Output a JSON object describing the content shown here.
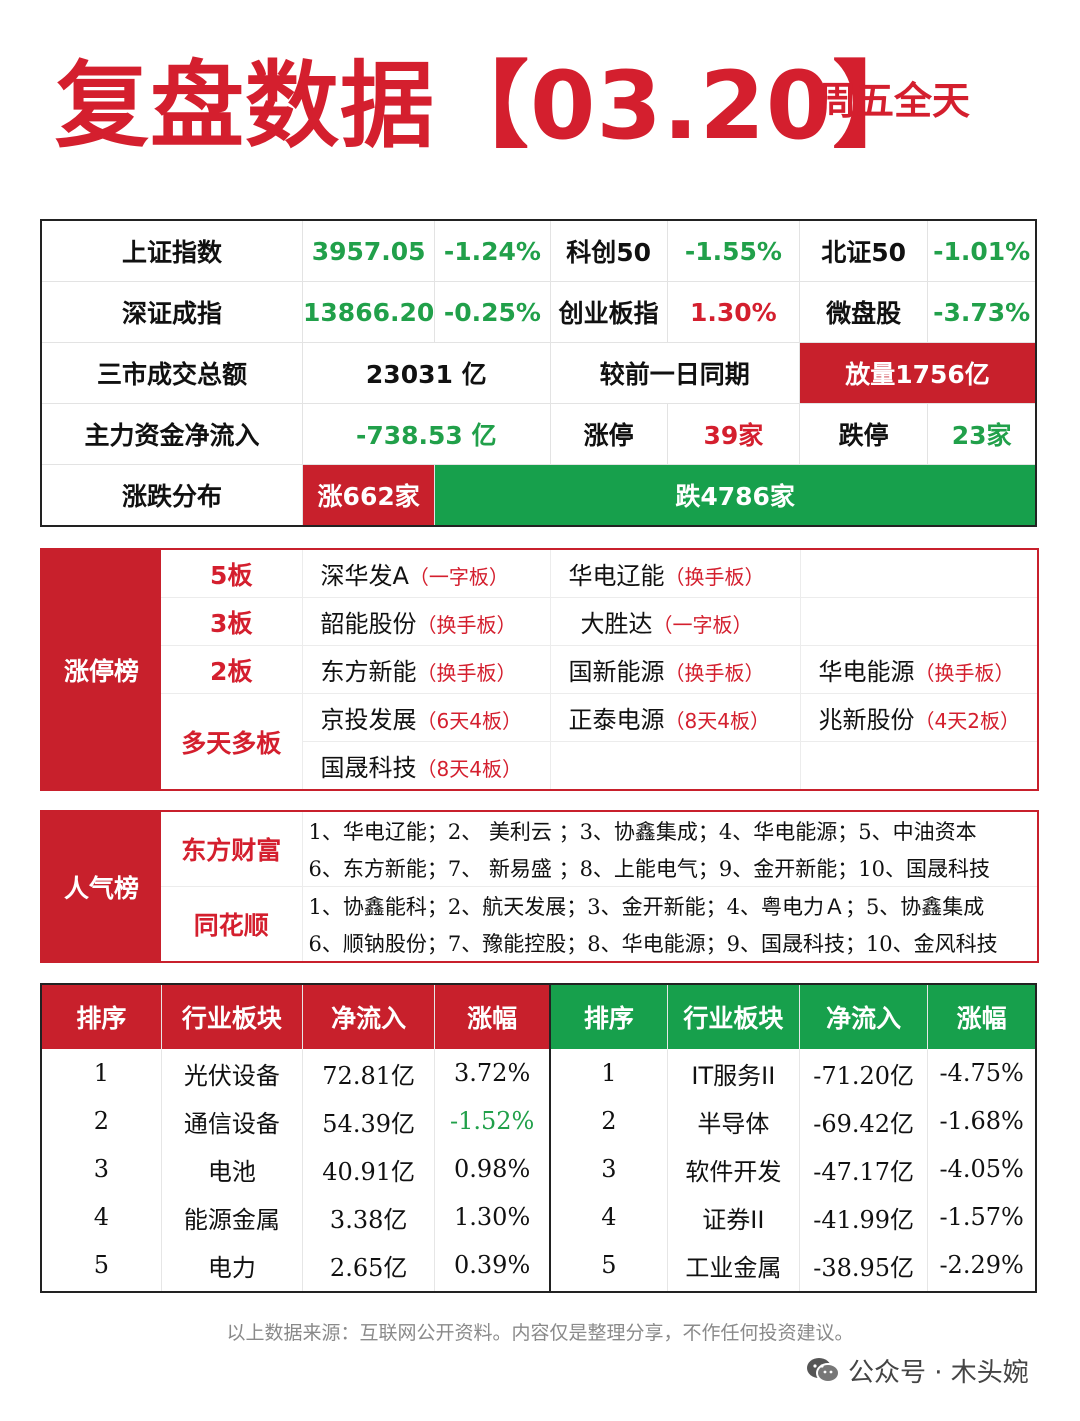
{
  "header": {
    "title": "复盘数据【03.20】",
    "subtitle": "周五全天"
  },
  "market": {
    "row1": [
      {
        "label": "上证指数",
        "value": "3957.05",
        "change": "-1.24%"
      },
      {
        "label": "科创50",
        "change": "-1.55%"
      },
      {
        "label": "北证50",
        "change": "-1.01%"
      }
    ],
    "row2": [
      {
        "label": "深证成指",
        "value": "13866.20",
        "change": "-0.25%"
      },
      {
        "label": "创业板指",
        "change": "1.30%"
      },
      {
        "label": "微盘股",
        "change": "-3.73%"
      }
    ],
    "turnover_label": "三市成交总额",
    "turnover_value": "23031 亿",
    "compare_label": "较前一日同期",
    "compare_value": "放量1756亿",
    "netflow_label": "主力资金净流入",
    "netflow_value": "-738.53 亿",
    "limit_up_label": "涨停",
    "limit_up_value": "39家",
    "limit_down_label": "跌停",
    "limit_down_value": "23家",
    "dist_label": "涨跌分布",
    "dist_up": "涨662家",
    "dist_down": "跌4786家"
  },
  "limit_board": {
    "section": "涨停榜",
    "boards": [
      "5板",
      "3板",
      "2板",
      "多天多板"
    ],
    "rows": [
      [
        {
          "name": "深华发A",
          "tag": "（一字板）"
        },
        {
          "name": "华电辽能",
          "tag": "（换手板）"
        },
        null
      ],
      [
        {
          "name": "韶能股份",
          "tag": "（换手板）"
        },
        {
          "name": "大胜达",
          "tag": "（一字板）"
        },
        null
      ],
      [
        {
          "name": "东方新能",
          "tag": "（换手板）"
        },
        {
          "name": "国新能源",
          "tag": "（换手板）"
        },
        {
          "name": "华电能源",
          "tag": "（换手板）"
        }
      ],
      [
        {
          "name": "京投发展",
          "tag": "（6天4板）"
        },
        {
          "name": "正泰电源",
          "tag": "（8天4板）"
        },
        {
          "name": "兆新股份",
          "tag": "（4天2板）"
        }
      ],
      [
        {
          "name": "国晟科技",
          "tag": "（8天4板）"
        },
        null,
        null
      ]
    ]
  },
  "popularity": {
    "section": "人气榜",
    "sources": [
      "东方财富",
      "同花顺"
    ],
    "lines": [
      "1、华电辽能；2、 美利云 ；3、协鑫集成；4、华电能源；5、中油资本",
      "6、东方新能；7、 新易盛 ；8、上能电气；9、金开新能；10、国晟科技",
      "1、协鑫能科；2、航天发展；3、金开新能；4、粤电力Ａ；5、协鑫集成",
      "6、顺钠股份；7、豫能控股；8、华电能源；9、国晟科技；10、金风科技"
    ]
  },
  "flows": {
    "headers": [
      "排序",
      "行业板块",
      "净流入",
      "涨幅"
    ],
    "inflow": [
      {
        "rank": "1",
        "sector": "光伏设备",
        "net": "72.81亿",
        "chg": "3.72%",
        "chg_color": "#111111"
      },
      {
        "rank": "2",
        "sector": "通信设备",
        "net": "54.39亿",
        "chg": "-1.52%",
        "chg_color": "#21a04a"
      },
      {
        "rank": "3",
        "sector": "电池",
        "net": "40.91亿",
        "chg": "0.98%",
        "chg_color": "#111111"
      },
      {
        "rank": "4",
        "sector": "能源金属",
        "net": "3.38亿",
        "chg": "1.30%",
        "chg_color": "#111111"
      },
      {
        "rank": "5",
        "sector": "电力",
        "net": "2.65亿",
        "chg": "0.39%",
        "chg_color": "#111111"
      }
    ],
    "outflow": [
      {
        "rank": "1",
        "sector": "IT服务II",
        "net": "-71.20亿",
        "chg": "-4.75%"
      },
      {
        "rank": "2",
        "sector": "半导体",
        "net": "-69.42亿",
        "chg": "-1.68%"
      },
      {
        "rank": "3",
        "sector": "软件开发",
        "net": "-47.17亿",
        "chg": "-4.05%"
      },
      {
        "rank": "4",
        "sector": "证券II",
        "net": "-41.99亿",
        "chg": "-1.57%"
      },
      {
        "rank": "5",
        "sector": "工业金属",
        "net": "-38.95亿",
        "chg": "-2.29%"
      }
    ]
  },
  "footer": {
    "note": "以上数据来源：互联网公开资料。内容仅是整理分享，不作任何投资建议。",
    "account": "公众号 · 木头婉"
  },
  "colors": {
    "red": "#c8202c",
    "green": "#17a04c"
  }
}
